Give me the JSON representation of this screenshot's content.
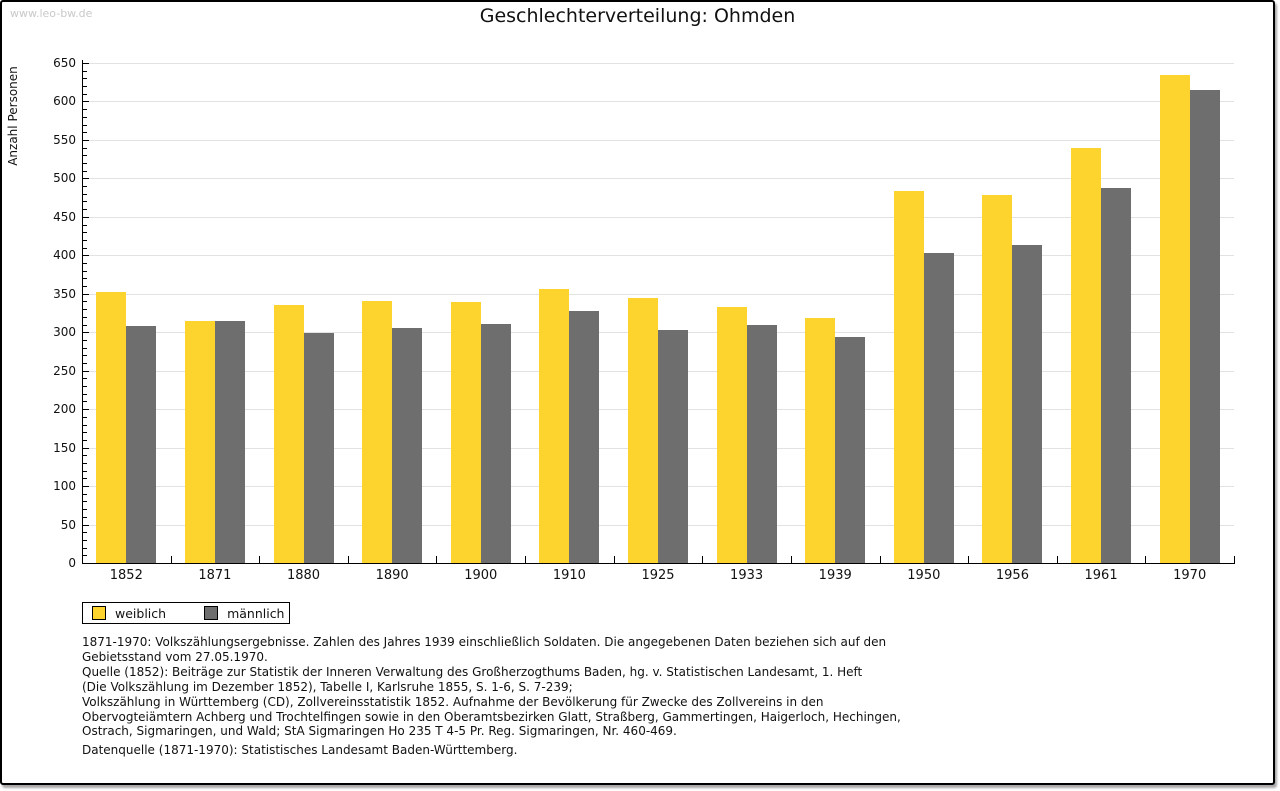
{
  "page": {
    "watermark": "www.leo-bw.de"
  },
  "chart_data": {
    "type": "bar",
    "title": "Geschlechterverteilung: Ohmden",
    "xlabel": "",
    "ylabel": "Anzahl Personen",
    "categories": [
      "1852",
      "1871",
      "1880",
      "1890",
      "1900",
      "1910",
      "1925",
      "1933",
      "1939",
      "1950",
      "1956",
      "1961",
      "1970"
    ],
    "series": [
      {
        "name": "weiblich",
        "color": "#fcd42d",
        "values": [
          352,
          314,
          336,
          341,
          339,
          356,
          344,
          333,
          318,
          483,
          478,
          540,
          635
        ]
      },
      {
        "name": "männlich",
        "color": "#6e6e6e",
        "values": [
          308,
          314,
          299,
          305,
          311,
          328,
          303,
          310,
          294,
          403,
          413,
          487,
          615
        ]
      }
    ],
    "ylim": [
      0,
      650
    ],
    "ytick_step": 50,
    "ytick_minor_step": 10,
    "grid": true,
    "legend_position": "bottom-left"
  },
  "footnotes": {
    "lines": [
      "1871-1970: Volkszählungsergebnisse. Zahlen des Jahres 1939 einschließlich Soldaten. Die angegebenen Daten beziehen sich auf den",
      "Gebietsstand vom 27.05.1970.",
      "Quelle (1852): Beiträge zur Statistik der Inneren Verwaltung des Großherzogthums Baden, hg. v. Statistischen Landesamt, 1. Heft",
      "(Die Volkszählung im Dezember 1852), Tabelle I, Karlsruhe 1855, S. 1-6, S. 7-239;",
      "Volkszählung in Württemberg (CD), Zollvereinsstatistik 1852. Aufnahme der Bevölkerung für Zwecke des Zollvereins in den",
      "Obervogteiämtern Achberg und Trochtelfingen sowie in den Oberamtsbezirken Glatt, Straßberg, Gammertingen, Haigerloch, Hechingen,",
      "Ostrach, Sigmaringen, und Wald; StA Sigmaringen Ho 235 T 4-5 Pr. Reg. Sigmaringen, Nr. 460-469."
    ],
    "datasource": "Datenquelle (1871-1970): Statistisches Landesamt Baden-Württemberg."
  }
}
